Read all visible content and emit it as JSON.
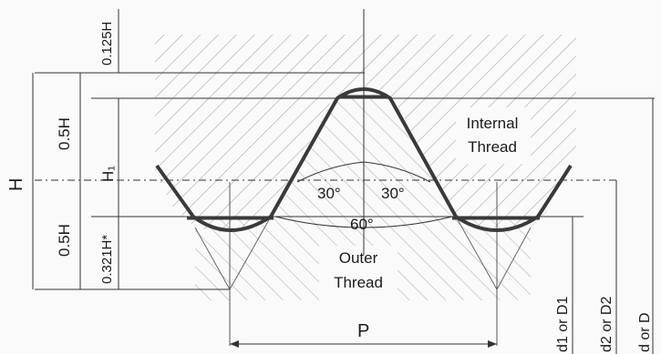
{
  "labels": {
    "top_dim": "0.125H",
    "upper_half": "0.5H",
    "total_height": "H",
    "lower_half": "0.5H",
    "root_dim": "0.321H*",
    "h1": "H₁",
    "internal_line1": "Internal",
    "internal_line2": "Thread",
    "outer_line1": "Outer",
    "outer_line2": "Thread",
    "angle_left": "30°",
    "angle_right": "30°",
    "angle_total": "60°",
    "pitch": "P",
    "d1": "d1 or D1",
    "d2": "d2 or D2",
    "d": "d or D"
  },
  "colors": {
    "profile": "#3a3a3a",
    "hatch": "#9a9a9a",
    "dim_line": "#333333"
  }
}
